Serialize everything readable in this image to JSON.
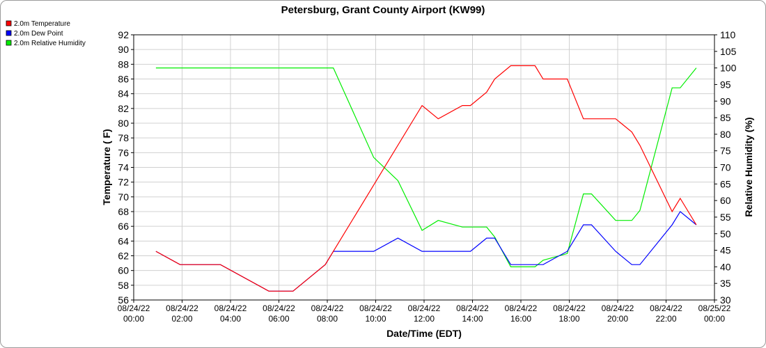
{
  "chart_data": {
    "type": "line",
    "title": "Petersburg, Grant County Airport (KW99)",
    "xlabel": "Date/Time (EDT)",
    "ylabel": "Temperature ( F)",
    "y2label": "Relative Humidity (%)",
    "ylim": [
      56,
      92
    ],
    "y2lim": [
      30,
      110
    ],
    "xlim_hours": [
      0,
      24
    ],
    "grid": true,
    "legend_position": "top-left",
    "yticks": [
      "56",
      "58",
      "60",
      "62",
      "64",
      "66",
      "68",
      "70",
      "72",
      "74",
      "76",
      "78",
      "80",
      "82",
      "84",
      "86",
      "88",
      "90",
      "92"
    ],
    "y2ticks": [
      "30",
      "35",
      "40",
      "45",
      "50",
      "55",
      "60",
      "65",
      "70",
      "75",
      "80",
      "85",
      "90",
      "95",
      "100",
      "105",
      "110"
    ],
    "xticks": [
      {
        "date": "08/24/22",
        "time": "00:00"
      },
      {
        "date": "08/24/22",
        "time": "02:00"
      },
      {
        "date": "08/24/22",
        "time": "04:00"
      },
      {
        "date": "08/24/22",
        "time": "06:00"
      },
      {
        "date": "08/24/22",
        "time": "08:00"
      },
      {
        "date": "08/24/22",
        "time": "10:00"
      },
      {
        "date": "08/24/22",
        "time": "12:00"
      },
      {
        "date": "08/24/22",
        "time": "14:00"
      },
      {
        "date": "08/24/22",
        "time": "16:00"
      },
      {
        "date": "08/24/22",
        "time": "18:00"
      },
      {
        "date": "08/24/22",
        "time": "20:00"
      },
      {
        "date": "08/24/22",
        "time": "22:00"
      },
      {
        "date": "08/25/22",
        "time": "00:00"
      }
    ],
    "series": [
      {
        "name": "2.0m Temperature",
        "color": "#ff0000",
        "axis": "left",
        "x": [
          "00:55",
          "01:55",
          "03:35",
          "05:35",
          "06:35",
          "07:55",
          "08:15",
          "09:55",
          "11:55",
          "12:35",
          "13:35",
          "13:55",
          "14:35",
          "14:55",
          "15:35",
          "16:35",
          "16:55",
          "17:55",
          "18:35",
          "19:55",
          "20:35",
          "20:55",
          "22:15",
          "22:35",
          "23:15"
        ],
        "y": [
          62.6,
          60.8,
          60.8,
          57.2,
          57.2,
          60.8,
          62.6,
          71.6,
          82.4,
          80.6,
          82.4,
          82.4,
          84.2,
          86.0,
          87.8,
          87.8,
          86.0,
          86.0,
          80.6,
          80.6,
          78.8,
          77.0,
          68.0,
          69.8,
          66.2
        ]
      },
      {
        "name": "2.0m Dew Point",
        "color": "#0000ff",
        "axis": "left",
        "x": [
          "00:55",
          "01:55",
          "03:35",
          "05:35",
          "06:35",
          "07:55",
          "08:15",
          "09:55",
          "10:55",
          "11:55",
          "12:55",
          "13:55",
          "14:35",
          "14:55",
          "15:35",
          "16:35",
          "16:55",
          "17:55",
          "18:35",
          "18:55",
          "19:55",
          "20:35",
          "20:55",
          "22:15",
          "22:35",
          "23:15"
        ],
        "y": [
          62.6,
          60.8,
          60.8,
          57.2,
          57.2,
          60.8,
          62.6,
          62.6,
          64.4,
          62.6,
          62.6,
          62.6,
          64.4,
          64.4,
          60.8,
          60.8,
          60.8,
          62.6,
          66.2,
          66.2,
          62.6,
          60.8,
          60.8,
          66.2,
          68.0,
          66.2
        ]
      },
      {
        "name": "2.0m Relative Humidity",
        "color": "#00ee00",
        "axis": "right",
        "x": [
          "00:55",
          "01:55",
          "03:35",
          "05:35",
          "06:35",
          "07:55",
          "08:15",
          "09:55",
          "10:55",
          "11:55",
          "12:35",
          "13:35",
          "13:55",
          "14:35",
          "14:55",
          "15:35",
          "16:35",
          "16:55",
          "17:55",
          "18:35",
          "18:55",
          "19:55",
          "20:35",
          "20:55",
          "22:15",
          "22:35",
          "23:15"
        ],
        "y": [
          100,
          100,
          100,
          100,
          100,
          100,
          100,
          73,
          66,
          51,
          54,
          52,
          52,
          52,
          49,
          40,
          40,
          42,
          44,
          62,
          62,
          54,
          54,
          57,
          94,
          94,
          100
        ]
      }
    ]
  }
}
